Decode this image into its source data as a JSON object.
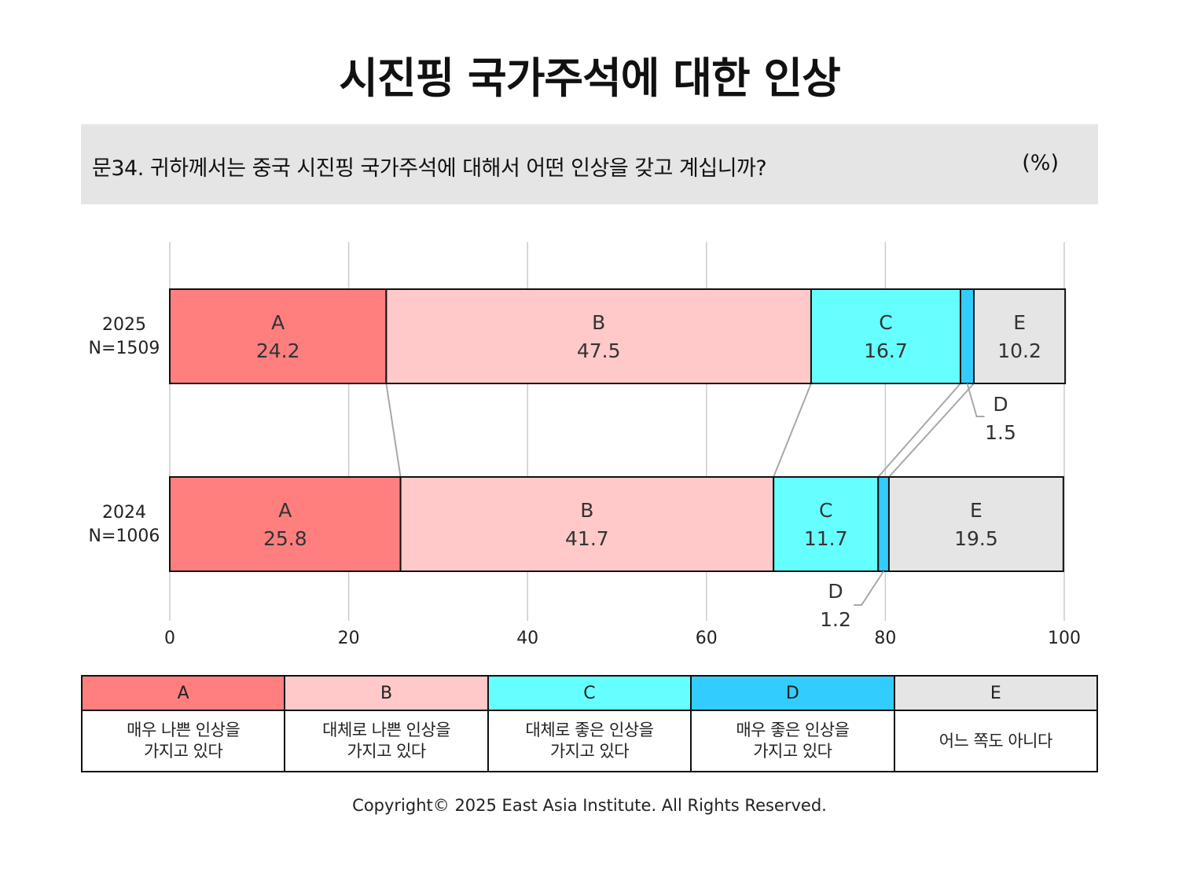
{
  "title": "시진핑 국가주석에 대한 인상",
  "question": "문34. 귀하께서는 중국 시진핑 국가주석에 대해서 어떤 인상을 갖고 계십니까?",
  "unit": "(%)",
  "chart_data": {
    "type": "bar",
    "orientation": "horizontal-stacked-100",
    "categories": [
      {
        "line1": "2025",
        "line2": "N=1509"
      },
      {
        "line1": "2024",
        "line2": "N=1006"
      }
    ],
    "series": [
      {
        "name": "A",
        "values": [
          24.2,
          25.8
        ],
        "color": "#ff7f7f"
      },
      {
        "name": "B",
        "values": [
          47.5,
          41.7
        ],
        "color": "#ffc9c9"
      },
      {
        "name": "C",
        "values": [
          16.7,
          11.7
        ],
        "color": "#66ffff"
      },
      {
        "name": "D",
        "values": [
          1.5,
          1.2
        ],
        "color": "#33ccff"
      },
      {
        "name": "E",
        "values": [
          10.2,
          19.5
        ],
        "color": "#e6e5e6"
      }
    ],
    "xlim": [
      0,
      100
    ],
    "xticks": [
      0,
      20,
      40,
      60,
      80,
      100
    ],
    "grid": true
  },
  "legend": [
    {
      "key": "A",
      "desc": "매우 나쁜 인상을\n가지고 있다",
      "color": "#ff7f7f"
    },
    {
      "key": "B",
      "desc": "대체로 나쁜 인상을\n가지고 있다",
      "color": "#ffc9c9"
    },
    {
      "key": "C",
      "desc": "대체로 좋은 인상을\n가지고 있다",
      "color": "#66ffff"
    },
    {
      "key": "D",
      "desc": "매우 좋은 인상을\n가지고 있다",
      "color": "#33ccff"
    },
    {
      "key": "E",
      "desc": "어느 쪽도 아니다",
      "color": "#e6e5e6"
    }
  ],
  "copyright": "Copyright© 2025 East Asia Institute. All Rights Reserved."
}
